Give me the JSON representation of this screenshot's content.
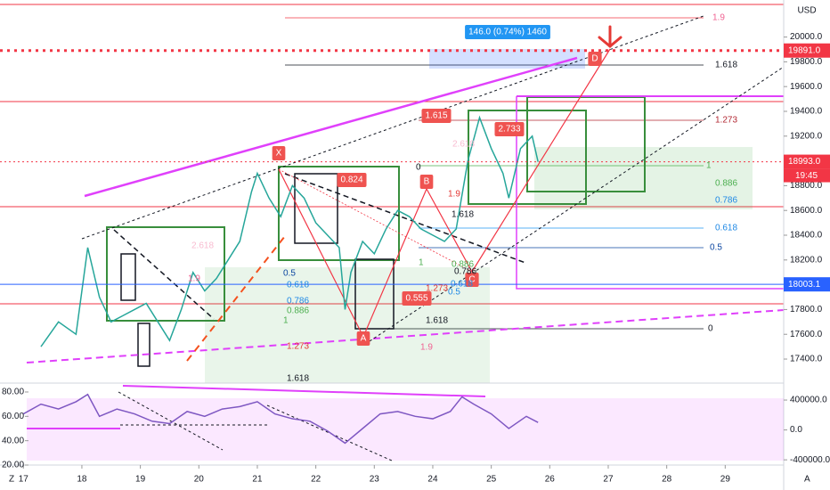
{
  "chart_data": [
    {
      "type": "line",
      "currency": "USD",
      "x": [
        17.3,
        17.6,
        17.9,
        18.1,
        18.3,
        18.5,
        18.7,
        18.9,
        19.1,
        19.3,
        19.5,
        19.7,
        19.9,
        20.1,
        20.3,
        20.5,
        20.7,
        20.9,
        21.0,
        21.2,
        21.4,
        21.6,
        21.8,
        22.0,
        22.2,
        22.4,
        22.5,
        22.6,
        22.8,
        23.0,
        23.2,
        23.4,
        23.6,
        23.8,
        24.0,
        24.2,
        24.4,
        24.6,
        24.8,
        25.0,
        25.2,
        25.3,
        25.5,
        25.7,
        25.8
      ],
      "series": [
        {
          "color": "#26a69a",
          "values": [
            17500,
            17700,
            17600,
            18300,
            17900,
            17700,
            17750,
            17800,
            17850,
            17700,
            17550,
            17800,
            18100,
            17950,
            18050,
            18200,
            18350,
            18750,
            18900,
            18700,
            18550,
            18800,
            18700,
            18500,
            18400,
            18300,
            17800,
            18100,
            18350,
            18250,
            18450,
            18600,
            18550,
            18450,
            18400,
            18350,
            18450,
            19000,
            19350,
            19100,
            18900,
            18700,
            19100,
            19200,
            18993
          ]
        }
      ],
      "xlim": [
        16.6,
        30.0
      ],
      "xticks": [
        17,
        18,
        19,
        20,
        21,
        22,
        23,
        24,
        25,
        26,
        27,
        28,
        29
      ],
      "ylim": [
        17206,
        20299
      ],
      "yticks": [
        {
          "value": 20000,
          "label": "20000.0"
        },
        {
          "value": 19800,
          "label": "19800.0"
        },
        {
          "value": 19600,
          "label": "19600.0"
        },
        {
          "value": 19400,
          "label": "19400.0"
        },
        {
          "value": 19200,
          "label": "19200.0"
        },
        {
          "value": 18800,
          "label": "18800.0"
        },
        {
          "value": 18600,
          "label": "18600.0"
        },
        {
          "value": 18400,
          "label": "18400.0"
        },
        {
          "value": 18200,
          "label": "18200.0"
        },
        {
          "value": 17800,
          "label": "17800.0"
        },
        {
          "value": 17600,
          "label": "17600.0"
        },
        {
          "value": 17400,
          "label": "17400.0"
        }
      ],
      "price_labels": [
        {
          "value": 19891,
          "label": "19891.0",
          "color": "#f23645"
        },
        {
          "value": 18993,
          "label": "18993.0",
          "color": "#f23645"
        },
        {
          "value": 18003.1,
          "label": "18003.1",
          "color": "#2962ff"
        }
      ],
      "countdown": "19:45",
      "annotations": [
        "146.0 (0.74%) 1460",
        "1.9",
        "1.618",
        "1.273",
        "1",
        "0.886",
        "0.786",
        "0.618",
        "0.5",
        "0",
        "1.615",
        "2.733",
        "2.618",
        "0.824",
        "0.555",
        "X",
        "A",
        "B",
        "C",
        "D",
        "2.618",
        "1.9",
        "0.5",
        "0.618",
        "0.786",
        "0.886",
        "1",
        "1.273",
        "1.618",
        "1.9",
        "1.618",
        "1.9",
        "1.618",
        "0",
        "1.273",
        "0.5",
        "0.618",
        "0.786",
        "0.886",
        "1"
      ]
    },
    {
      "type": "line",
      "x": [
        17.0,
        17.3,
        17.6,
        17.9,
        18.1,
        18.3,
        18.6,
        18.9,
        19.2,
        19.5,
        19.8,
        20.1,
        20.4,
        20.7,
        21.0,
        21.3,
        21.6,
        21.9,
        22.2,
        22.5,
        22.8,
        23.1,
        23.4,
        23.7,
        24.0,
        24.3,
        24.5,
        24.7,
        25.0,
        25.3,
        25.6,
        25.8
      ],
      "series": [
        {
          "color": "#7e57c2",
          "values": [
            62,
            70,
            66,
            72,
            78,
            60,
            66,
            62,
            56,
            54,
            64,
            60,
            66,
            68,
            72,
            62,
            58,
            56,
            48,
            38,
            50,
            62,
            64,
            60,
            58,
            64,
            76,
            70,
            62,
            50,
            60,
            55
          ]
        }
      ],
      "ylim": [
        20,
        87.3
      ],
      "yticks": [
        {
          "value": 80,
          "label": "80.00"
        },
        {
          "value": 60,
          "label": "60.00"
        },
        {
          "value": 40,
          "label": "40.00"
        },
        {
          "value": 20,
          "label": "20.00"
        }
      ],
      "y2lim": [
        -470000,
        627000
      ],
      "y2ticks": [
        {
          "value": 400000,
          "label": "400000.0"
        },
        {
          "value": 0,
          "label": "0.0"
        },
        {
          "value": -400000,
          "label": "-400000.0"
        }
      ],
      "corner_labels": [
        "Z",
        "A"
      ]
    }
  ]
}
